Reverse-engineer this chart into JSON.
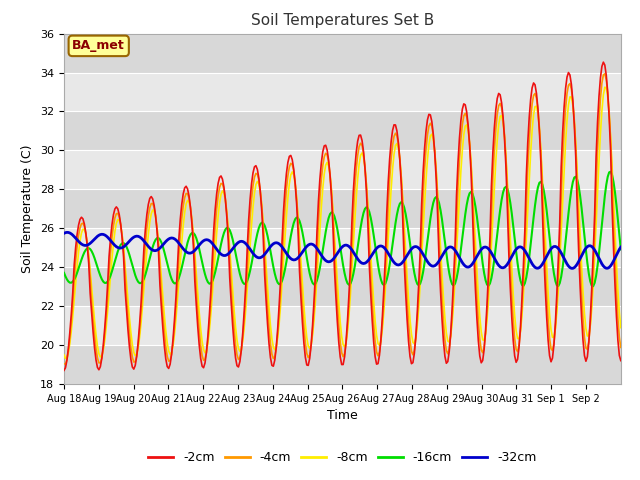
{
  "title": "Soil Temperatures Set B",
  "xlabel": "Time",
  "ylabel": "Soil Temperature (C)",
  "ylim": [
    18,
    36
  ],
  "annotation_text": "BA_met",
  "annotation_bg": "#ffff99",
  "annotation_border": "#996600",
  "legend_entries": [
    "-2cm",
    "-4cm",
    "-8cm",
    "-16cm",
    "-32cm"
  ],
  "line_colors": [
    "#ee1111",
    "#ff9900",
    "#ffee00",
    "#00dd00",
    "#0000cc"
  ],
  "line_widths": [
    1.2,
    1.2,
    1.2,
    1.5,
    2.0
  ],
  "xtick_labels": [
    "Aug 18",
    "Aug 19",
    "Aug 20",
    "Aug 21",
    "Aug 22",
    "Aug 23",
    "Aug 24",
    "Aug 25",
    "Aug 26",
    "Aug 27",
    "Aug 28",
    "Aug 29",
    "Aug 30",
    "Aug 31",
    "Sep 1",
    "Sep 2"
  ],
  "ytick_vals": [
    18,
    20,
    22,
    24,
    26,
    28,
    30,
    32,
    34,
    36
  ],
  "fig_bg": "#ffffff",
  "plot_bg": "#e8e8e8",
  "band_color": "#d8d8d8"
}
